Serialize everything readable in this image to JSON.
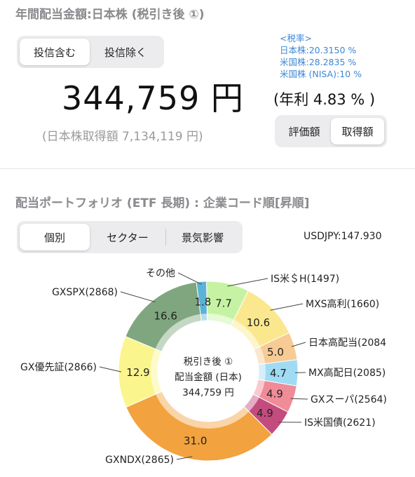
{
  "header": {
    "title": "年間配当金額:日本株 (税引き後 ①)"
  },
  "fund_toggle": {
    "include_label": "投信含む",
    "exclude_label": "投信除く",
    "selected": "include"
  },
  "tax_rates": {
    "heading": "<税率>",
    "japan": "日本株:20.3150 %",
    "us": "米国株:28.2835 %",
    "us_nisa": "米国株 (NISA):10 %"
  },
  "summary": {
    "amount": "344,759 円",
    "yield": "(年利 4.83 % )",
    "acquisition": "(日本株取得額 7,134,119 円)"
  },
  "valuation_toggle": {
    "market_label": "評価額",
    "cost_label": "取得額",
    "selected": "cost"
  },
  "portfolio": {
    "title": "配当ポートフォリオ (ETF 長期) : 企業コード順[昇順]",
    "tabs": [
      "個別",
      "セクター",
      "景気影響"
    ],
    "selected_tab": 0,
    "fx_rate": "USDJPY:147.930"
  },
  "donut_center": {
    "line1": "税引き後 ①",
    "line2": "配当金額 (日本)",
    "line3": "344,759 円"
  },
  "chart_data": {
    "type": "pie",
    "subtype": "donut",
    "title": "",
    "series": [
      {
        "label": "IS米＄H(1497)",
        "value": 7.7,
        "color": "#c6f3a3"
      },
      {
        "label": "MXS高利(1660)",
        "value": 10.6,
        "color": "#fbe88e"
      },
      {
        "label": "日本高配当(2084",
        "value": 5.0,
        "color": "#f7cb93"
      },
      {
        "label": "MX高配日(2085)",
        "value": 4.7,
        "color": "#9fdcf3"
      },
      {
        "label": "GXスーパ(2564)",
        "value": 4.9,
        "color": "#f08b98"
      },
      {
        "label": "IS米国債(2621)",
        "value": 4.9,
        "color": "#c44b7e"
      },
      {
        "label": "GXNDX(2865)",
        "value": 31.0,
        "color": "#f2a23f"
      },
      {
        "label": "GX優先証(2866)",
        "value": 12.9,
        "color": "#fbf58e"
      },
      {
        "label": "GXSPX(2868)",
        "value": 16.6,
        "color": "#7fa67e"
      },
      {
        "label": "その他",
        "value": 1.8,
        "color": "#5bb3d6"
      }
    ],
    "value_labels": [
      "7.7",
      "10.6",
      "5.0",
      "4.7",
      "4.9",
      "4.9",
      "31.0",
      "12.9",
      "16.6",
      "1.8"
    ]
  }
}
